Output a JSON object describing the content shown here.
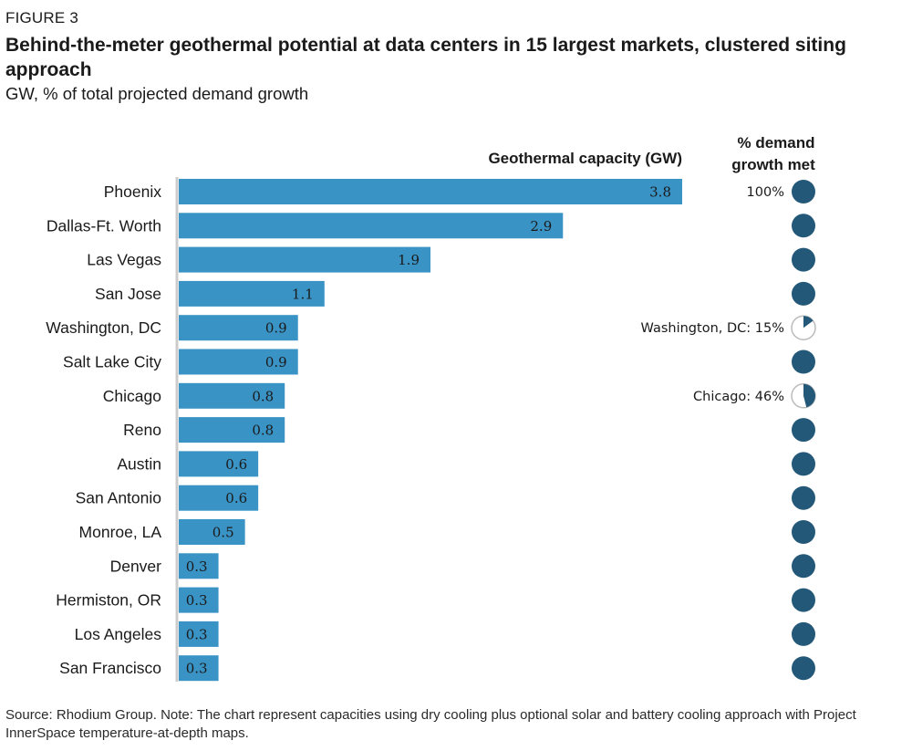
{
  "figure_label": "FIGURE 3",
  "source_note": "Source: Rhodium Group. Note: The chart represent capacities using dry cooling plus optional solar and battery cooling approach with Project InnerSpace temperature-at-depth maps.",
  "colors": {
    "bar": "#3a93c5",
    "circle": "#235878",
    "axis": "#cccccc",
    "text": "#1a1a1a"
  },
  "chart_data": {
    "type": "bar",
    "orientation": "horizontal",
    "title": "Behind-the-meter geothermal potential at data centers in 15 largest markets, clustered siting approach",
    "subtitle": "GW, % of total projected demand growth",
    "value_header": "Geothermal capacity (GW)",
    "pct_header": [
      "% demand",
      "growth met"
    ],
    "categories": [
      "Phoenix",
      "Dallas-Ft. Worth",
      "Las Vegas",
      "San Jose",
      "Washington, DC",
      "Salt Lake City",
      "Chicago",
      "Reno",
      "Austin",
      "San Antonio",
      "Monroe, LA",
      "Denver",
      "Hermiston, OR",
      "Los Angeles",
      "San Francisco"
    ],
    "values": [
      3.8,
      2.9,
      1.9,
      1.1,
      0.9,
      0.9,
      0.8,
      0.8,
      0.6,
      0.6,
      0.5,
      0.3,
      0.3,
      0.3,
      0.3
    ],
    "value_labels": [
      "3.8",
      "2.9",
      "1.9",
      "1.1",
      "0.9",
      "0.9",
      "0.8",
      "0.8",
      "0.6",
      "0.6",
      "0.5",
      "0.3",
      "0.3",
      "0.3",
      "0.3"
    ],
    "pct_met": [
      100,
      100,
      100,
      100,
      15,
      100,
      46,
      100,
      100,
      100,
      100,
      100,
      100,
      100,
      100
    ],
    "pct_labels": [
      "100%",
      "",
      "",
      "",
      "Washington, DC: 15%",
      "",
      "Chicago: 46%",
      "",
      "",
      "",
      "",
      "",
      "",
      "",
      ""
    ],
    "xlim": [
      0,
      3.8
    ]
  }
}
